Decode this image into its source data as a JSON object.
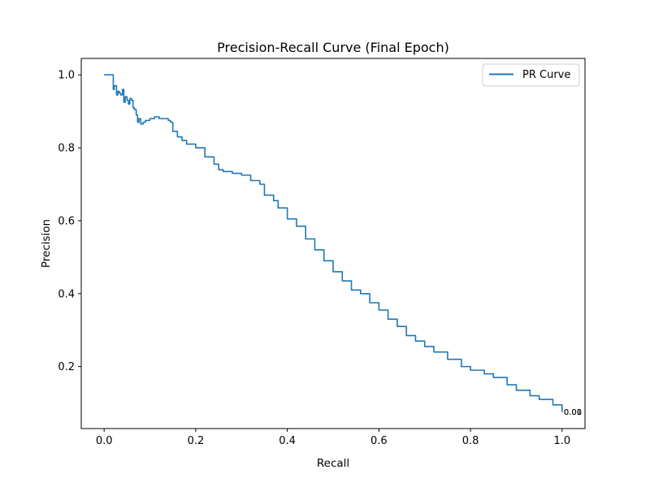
{
  "chart_data": {
    "type": "line",
    "title": "Precision-Recall Curve (Final Epoch)",
    "xlabel": "Recall",
    "ylabel": "Precision",
    "xlim": [
      -0.05,
      1.05
    ],
    "ylim": [
      0.03,
      1.045
    ],
    "x_ticks": [
      0.0,
      0.2,
      0.4,
      0.6,
      0.8,
      1.0
    ],
    "x_tick_labels": [
      "0.0",
      "0.2",
      "0.4",
      "0.6",
      "0.8",
      "1.0"
    ],
    "y_ticks": [
      0.2,
      0.4,
      0.6,
      0.8,
      1.0
    ],
    "y_tick_labels": [
      "0.2",
      "0.4",
      "0.6",
      "0.8",
      "1.0"
    ],
    "grid": false,
    "legend_position": "top-right",
    "line_color": "#1f77b4",
    "series": [
      {
        "name": "PR Curve",
        "x": [
          0.0,
          0.02,
          0.02,
          0.022,
          0.025,
          0.027,
          0.03,
          0.033,
          0.036,
          0.04,
          0.043,
          0.046,
          0.05,
          0.053,
          0.056,
          0.06,
          0.063,
          0.066,
          0.07,
          0.073,
          0.076,
          0.08,
          0.085,
          0.09,
          0.1,
          0.11,
          0.12,
          0.13,
          0.14,
          0.145,
          0.15,
          0.16,
          0.17,
          0.18,
          0.2,
          0.22,
          0.24,
          0.25,
          0.26,
          0.28,
          0.3,
          0.32,
          0.34,
          0.35,
          0.37,
          0.38,
          0.4,
          0.42,
          0.44,
          0.46,
          0.48,
          0.5,
          0.52,
          0.54,
          0.56,
          0.58,
          0.6,
          0.62,
          0.64,
          0.66,
          0.68,
          0.7,
          0.72,
          0.75,
          0.78,
          0.8,
          0.83,
          0.85,
          0.88,
          0.9,
          0.93,
          0.95,
          0.98,
          1.0
        ],
        "y": [
          1.0,
          1.0,
          0.96,
          0.97,
          0.97,
          0.945,
          0.955,
          0.95,
          0.945,
          0.96,
          0.925,
          0.94,
          0.93,
          0.92,
          0.935,
          0.93,
          0.91,
          0.905,
          0.89,
          0.87,
          0.88,
          0.865,
          0.87,
          0.875,
          0.88,
          0.885,
          0.88,
          0.88,
          0.875,
          0.87,
          0.845,
          0.83,
          0.82,
          0.81,
          0.8,
          0.775,
          0.755,
          0.74,
          0.735,
          0.73,
          0.725,
          0.71,
          0.7,
          0.67,
          0.655,
          0.635,
          0.605,
          0.585,
          0.55,
          0.52,
          0.49,
          0.46,
          0.435,
          0.41,
          0.4,
          0.375,
          0.355,
          0.33,
          0.31,
          0.285,
          0.27,
          0.255,
          0.24,
          0.22,
          0.2,
          0.19,
          0.18,
          0.17,
          0.15,
          0.135,
          0.12,
          0.11,
          0.095,
          0.075
        ]
      }
    ],
    "end_annotations": [
      "0.01",
      "0.00"
    ]
  }
}
